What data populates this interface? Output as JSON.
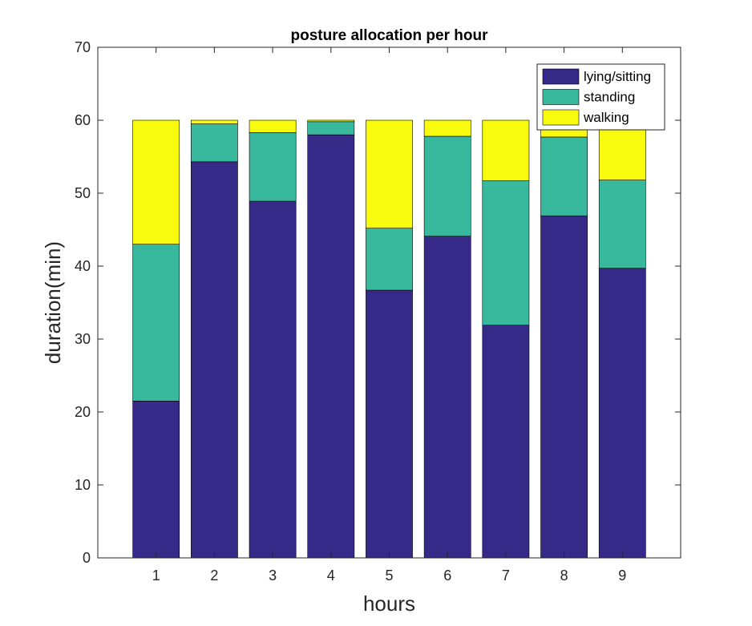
{
  "chart_data": {
    "type": "bar",
    "stacked": true,
    "title": "posture allocation per hour",
    "xlabel": "hours",
    "ylabel": "duration(min)",
    "ylim": [
      0,
      70
    ],
    "yticks": [
      0,
      10,
      20,
      30,
      40,
      50,
      60,
      70
    ],
    "categories": [
      "1",
      "2",
      "3",
      "4",
      "5",
      "6",
      "7",
      "8",
      "9"
    ],
    "series": [
      {
        "name": "lying/sitting",
        "color": "#352a87",
        "values": [
          21.5,
          54.3,
          48.9,
          58.0,
          36.7,
          44.1,
          31.9,
          46.9,
          39.7
        ]
      },
      {
        "name": "standing",
        "color": "#38b99e",
        "values": [
          21.5,
          5.2,
          9.4,
          1.8,
          8.5,
          13.7,
          19.8,
          10.8,
          12.1
        ]
      },
      {
        "name": "walking",
        "color": "#f9fb0e",
        "values": [
          17.0,
          0.5,
          1.7,
          0.2,
          14.8,
          2.2,
          8.3,
          2.3,
          8.2
        ]
      }
    ],
    "legend_position": "top-right",
    "grid": false
  }
}
